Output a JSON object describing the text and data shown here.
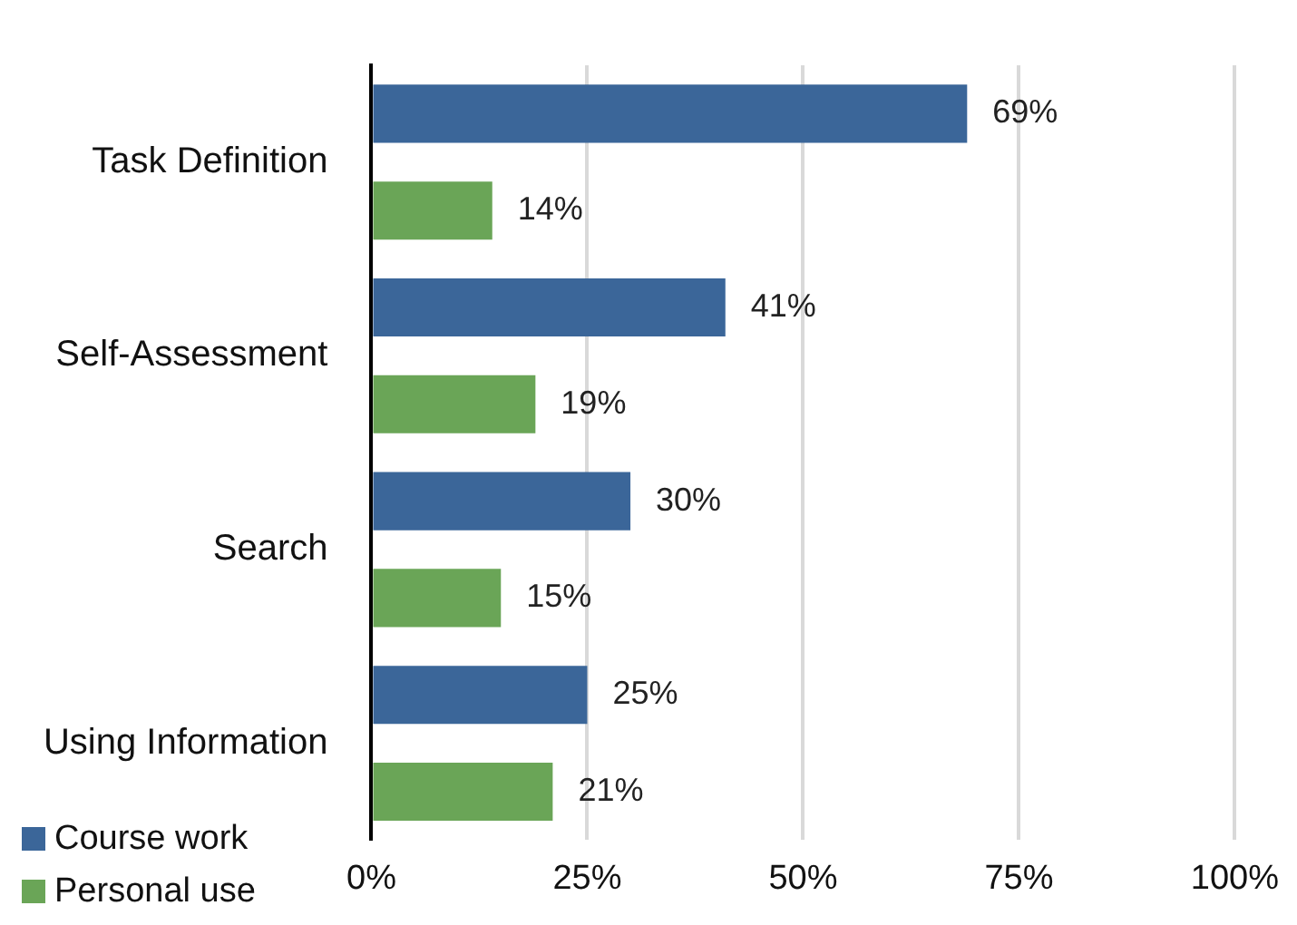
{
  "chart_data": {
    "type": "bar",
    "orientation": "horizontal",
    "categories": [
      "Task Definition",
      "Self-Assessment",
      "Search",
      "Using Information"
    ],
    "series": [
      {
        "name": "Course work",
        "color": "#3b6699",
        "values": [
          69,
          41,
          30,
          25
        ],
        "value_labels": [
          "69%",
          "41%",
          "30%",
          "25%"
        ]
      },
      {
        "name": "Personal use",
        "color": "#6aa557",
        "values": [
          14,
          19,
          15,
          21
        ],
        "value_labels": [
          "14%",
          "19%",
          "15%",
          "21%"
        ]
      }
    ],
    "xlim": [
      0,
      100
    ],
    "xticks": [
      {
        "value": 0,
        "label": "0%"
      },
      {
        "value": 25,
        "label": "25%"
      },
      {
        "value": 50,
        "label": "50%"
      },
      {
        "value": 75,
        "label": "75%"
      },
      {
        "value": 100,
        "label": "100%"
      }
    ],
    "grid": "x",
    "legend": "bottom left"
  }
}
